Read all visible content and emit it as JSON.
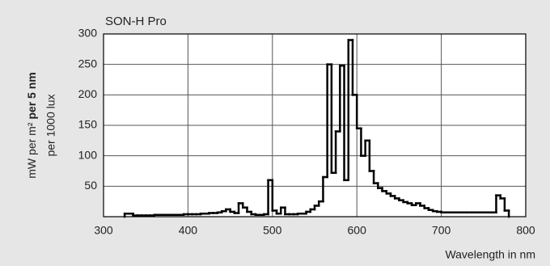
{
  "chart_data": {
    "type": "histogram",
    "title": "SON-H Pro",
    "x_label": "Wavelength in nm",
    "y_label": {
      "unit": "mW per m²",
      "bold": "per 5 nm",
      "second": "per 1000 lux"
    },
    "bins": [
      325,
      330,
      335,
      340,
      345,
      350,
      355,
      360,
      365,
      370,
      375,
      380,
      385,
      390,
      395,
      400,
      405,
      410,
      415,
      420,
      425,
      430,
      435,
      440,
      445,
      450,
      455,
      460,
      465,
      470,
      475,
      480,
      485,
      490,
      495,
      500,
      505,
      510,
      515,
      520,
      525,
      530,
      535,
      540,
      545,
      550,
      555,
      560,
      565,
      570,
      575,
      580,
      585,
      590,
      595,
      600,
      605,
      610,
      615,
      620,
      625,
      630,
      635,
      640,
      645,
      650,
      655,
      660,
      665,
      670,
      675,
      680,
      685,
      690,
      695,
      700,
      705,
      710,
      715,
      720,
      725,
      730,
      735,
      740,
      745,
      750,
      755,
      760,
      765,
      770,
      775,
      780
    ],
    "values": [
      5,
      5,
      2,
      2,
      2,
      2,
      2,
      3,
      3,
      3,
      3,
      3,
      3,
      3,
      4,
      4,
      4,
      4,
      5,
      5,
      6,
      6,
      7,
      9,
      12,
      8,
      6,
      22,
      15,
      8,
      4,
      3,
      3,
      4,
      60,
      10,
      5,
      15,
      4,
      4,
      4,
      5,
      5,
      8,
      12,
      18,
      25,
      65,
      250,
      72,
      140,
      248,
      60,
      290,
      200,
      145,
      100,
      125,
      75,
      55,
      47,
      42,
      38,
      34,
      30,
      27,
      24,
      22,
      19,
      22,
      18,
      14,
      11,
      9,
      8,
      7,
      7,
      7,
      7,
      7,
      7,
      7,
      7,
      7,
      7,
      7,
      7,
      7,
      35,
      30,
      10
    ],
    "color": "#000000",
    "xlim": [
      300,
      800
    ],
    "xticks": [
      300,
      400,
      500,
      600,
      700,
      800
    ],
    "ylim": [
      0,
      300
    ],
    "yticks": [
      50,
      100,
      150,
      200,
      250,
      300
    ],
    "grid": true
  }
}
